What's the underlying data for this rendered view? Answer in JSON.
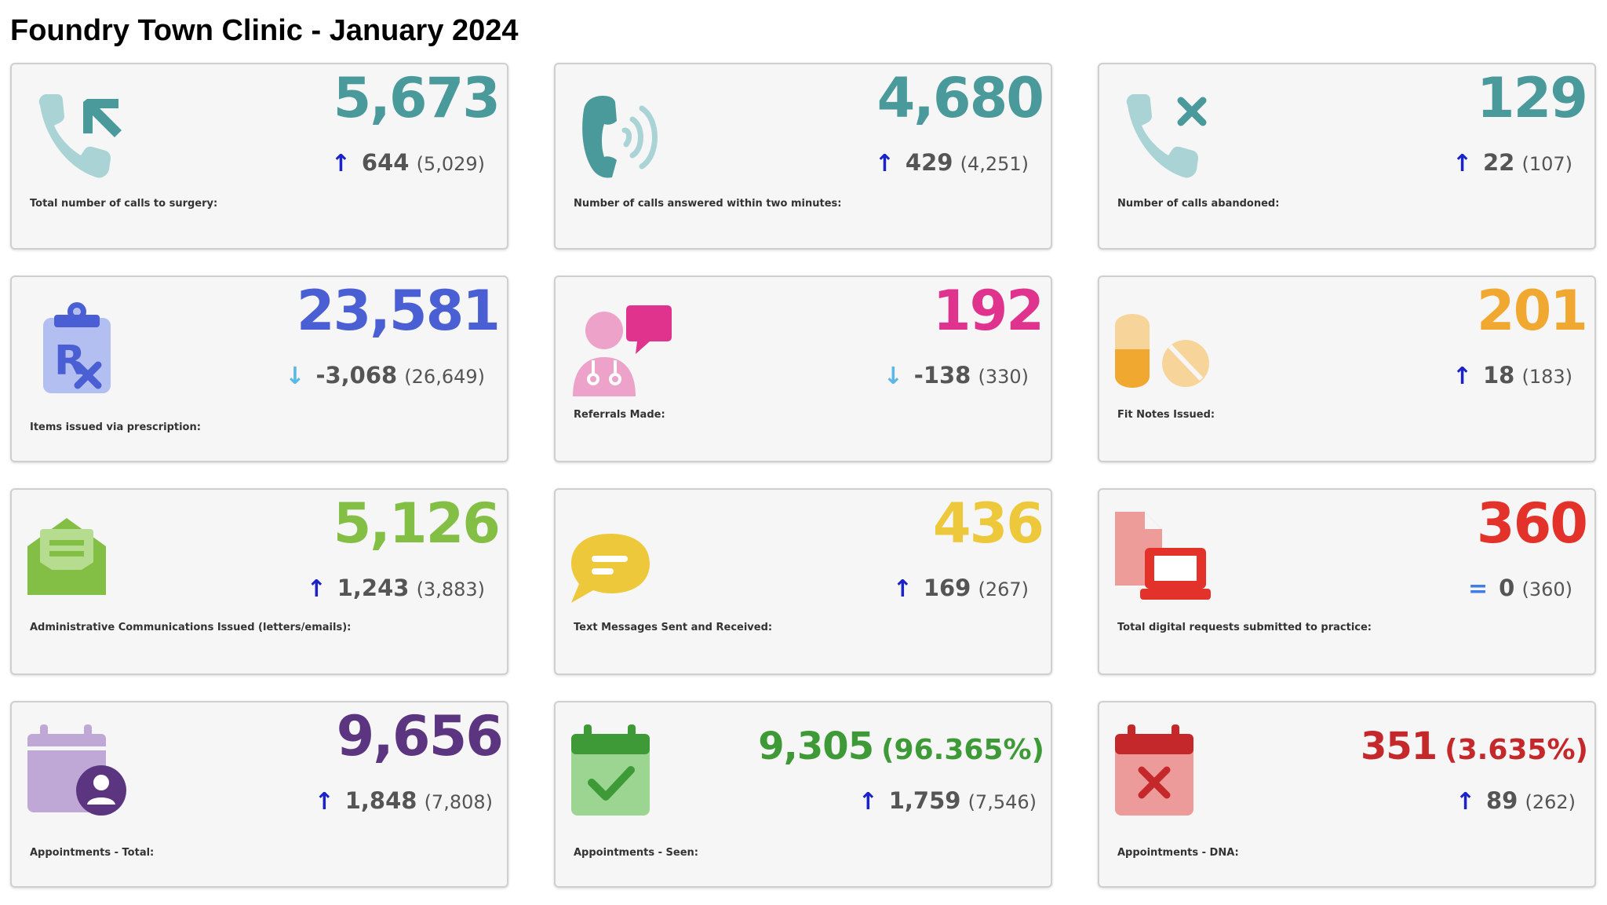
{
  "title": "Foundry Town Clinic - January 2024",
  "cards": [
    {
      "label": "Total number of calls to surgery:",
      "value": "5,673",
      "change": "644",
      "previous": "(5,029)",
      "arrow": "↑",
      "color": "#4a9a9c",
      "arrow_color": "#1a22c8",
      "icon": "phone-incoming-icon"
    },
    {
      "label": "Number of calls answered within two minutes:",
      "value": "4,680",
      "change": "429",
      "previous": "(4,251)",
      "arrow": "↑",
      "color": "#4a9a9c",
      "arrow_color": "#1a22c8",
      "icon": "phone-ringing-icon"
    },
    {
      "label": "Number of calls abandoned:",
      "value": "129",
      "change": "22",
      "previous": "(107)",
      "arrow": "↑",
      "color": "#4a9a9c",
      "arrow_color": "#1a22c8",
      "icon": "phone-missed-icon"
    },
    {
      "label": "Items issued via prescription:",
      "value": "23,581",
      "change": "-3,068",
      "previous": "(26,649)",
      "arrow": "↓",
      "color": "#4a5fd3",
      "arrow_color": "#5ab7e6",
      "icon": "prescription-icon"
    },
    {
      "label": "Referrals Made:",
      "value": "192",
      "change": "-138",
      "previous": "(330)",
      "arrow": "↓",
      "color": "#e0338e",
      "arrow_color": "#5ab7e6",
      "icon": "doctor-referral-icon"
    },
    {
      "label": "Fit Notes Issued:",
      "value": "201",
      "change": "18",
      "previous": "(183)",
      "arrow": "↑",
      "color": "#f0a830",
      "arrow_color": "#1a22c8",
      "icon": "pills-icon"
    },
    {
      "label": "Administrative Communications Issued (letters/emails):",
      "value": "5,126",
      "change": "1,243",
      "previous": "(3,883)",
      "arrow": "↑",
      "color": "#84bf45",
      "arrow_color": "#1a22c8",
      "icon": "envelope-icon"
    },
    {
      "label": "Text Messages Sent and Received:",
      "value": "436",
      "change": "169",
      "previous": "(267)",
      "arrow": "↑",
      "color": "#ecc83a",
      "arrow_color": "#1a22c8",
      "icon": "chat-bubble-icon"
    },
    {
      "label": "Total digital requests submitted to practice:",
      "value": "360",
      "change": "0",
      "previous": "(360)",
      "arrow": "=",
      "color": "#e3322a",
      "arrow_color": "#3d7ee8",
      "icon": "laptop-document-icon"
    },
    {
      "label": "Appointments - Total:",
      "value": "9,656",
      "pct": "",
      "change": "1,848",
      "previous": "(7,808)",
      "arrow": "↑",
      "color": "#5c3580",
      "arrow_color": "#1a22c8",
      "icon": "calendar-user-icon"
    },
    {
      "label": "Appointments - Seen:",
      "value": "9,305",
      "pct": "(96.365%)",
      "change": "1,759",
      "previous": "(7,546)",
      "arrow": "↑",
      "color": "#3e9a36",
      "arrow_color": "#1a22c8",
      "icon": "calendar-check-icon"
    },
    {
      "label": "Appointments - DNA:",
      "value": "351",
      "pct": "(3.635%)",
      "change": "89",
      "previous": "(262)",
      "arrow": "↑",
      "color": "#c4282b",
      "arrow_color": "#1a22c8",
      "icon": "calendar-cross-icon"
    }
  ]
}
